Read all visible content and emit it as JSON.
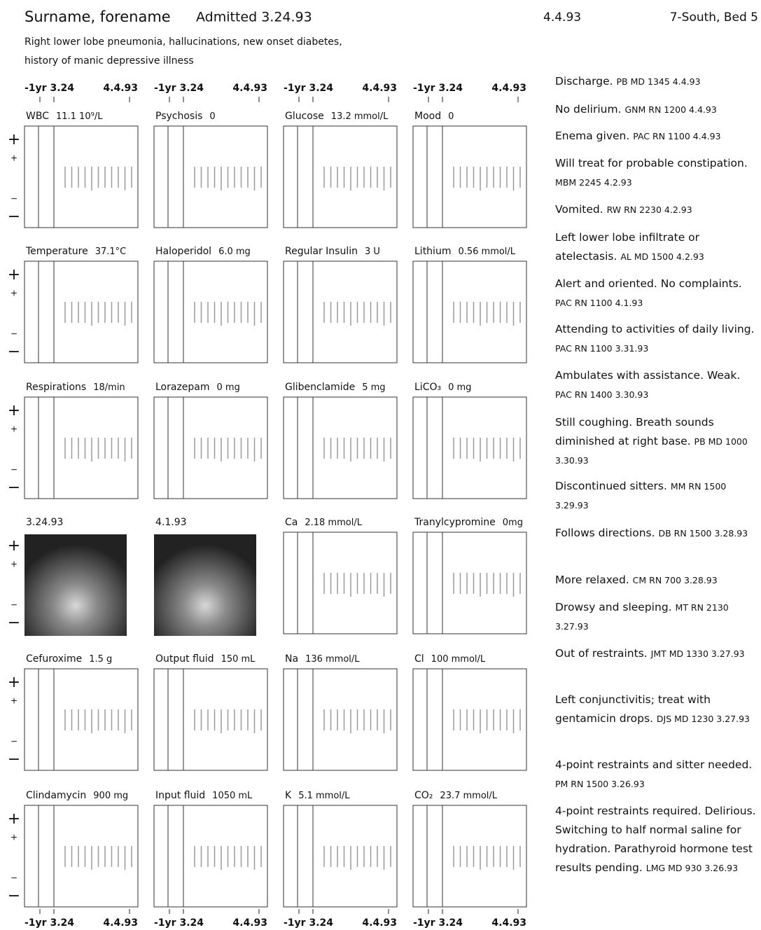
{
  "header": {
    "patient": "Surname, forename",
    "admitted": "Admitted 3.24.93",
    "date": "4.4.93",
    "location": "7-South, Bed 5",
    "diagnosis": [
      "Right lower lobe pneumonia, hallucinations, new onset diabetes,",
      "history of manic depressive illness"
    ]
  },
  "axis": {
    "left": "-1yr 3.24",
    "right": "4.4.93"
  },
  "scale": {
    "high": "+",
    "low": "−"
  },
  "panels": [
    [
      {
        "name": "WBC",
        "reading": "11.1  10⁹/L"
      },
      {
        "name": "Psychosis",
        "reading": "0"
      },
      {
        "name": "Glucose",
        "reading": "13.2 mmol/L"
      },
      {
        "name": "Mood",
        "reading": "0"
      }
    ],
    [
      {
        "name": "Temperature",
        "reading": "37.1°C"
      },
      {
        "name": "Haloperidol",
        "reading": "6.0 mg"
      },
      {
        "name": "Regular Insulin",
        "reading": "3 U"
      },
      {
        "name": "Lithium",
        "reading": "0.56 mmol/L"
      }
    ],
    [
      {
        "name": "Respirations",
        "reading": "18/min"
      },
      {
        "name": "Lorazepam",
        "reading": "0 mg"
      },
      {
        "name": "Glibenclamide",
        "reading": "5 mg"
      },
      {
        "name": "LiCO₃",
        "reading": "0 mg"
      }
    ],
    [
      {
        "caption": "3.24.93"
      },
      {
        "caption": "4.1.93"
      },
      {
        "name": "Ca",
        "reading": "2.18  mmol/L"
      },
      {
        "name": "Tranylcypromine",
        "reading": "0mg"
      }
    ],
    [
      {
        "name": "Cefuroxime",
        "reading": "1.5 g"
      },
      {
        "name": "Output fluid",
        "reading": "150 mL"
      },
      {
        "name": "Na",
        "reading": "136  mmol/L"
      },
      {
        "name": "Cl",
        "reading": "100  mmol/L"
      }
    ],
    [
      {
        "name": "Clindamycin",
        "reading": "900 mg"
      },
      {
        "name": "Input fluid",
        "reading": "1050 mL"
      },
      {
        "name": "K",
        "reading": "5.1  mmol/L"
      },
      {
        "name": "CO₂",
        "reading": "23.7 mmol/L"
      }
    ]
  ],
  "notes": [
    {
      "text": "Discharge.",
      "by": "PB MD 1345 4.4.93"
    },
    {
      "text": "No delirium.",
      "by": "GNM RN 1200 4.4.93"
    },
    {
      "text": "Enema given.",
      "by": "PAC RN 1100 4.4.93"
    },
    {
      "text": "Will treat for probable constipation.",
      "by": "MBM 2245 4.2.93"
    },
    {
      "text": "Vomited.",
      "by": "RW RN 2230 4.2.93"
    },
    {
      "text": "Left lower lobe infiltrate or atelectasis.",
      "by": "AL MD 1500 4.2.93"
    },
    {
      "text": "Alert and oriented. No complaints.",
      "by": "PAC RN 1100 4.1.93"
    },
    {
      "text": "Attending to activities of daily living.",
      "by": "PAC RN 1100 3.31.93"
    },
    {
      "text": "Ambulates with assistance. Weak.",
      "by": "PAC RN 1400 3.30.93"
    },
    {
      "text": "Still coughing. Breath sounds diminished at right base.",
      "by": "PB MD 1000 3.30.93"
    },
    {
      "text": "Discontinued sitters.",
      "by": "MM RN 1500 3.29.93"
    },
    {
      "text": "Follows directions.",
      "by": "DB RN 1500 3.28.93"
    },
    {
      "text": "More relaxed.",
      "by": "CM RN 700 3.28.93"
    },
    {
      "text": "Drowsy and sleeping.",
      "by": "MT RN 2130 3.27.93"
    },
    {
      "text": "Out of restraints.",
      "by": "JMT MD 1330 3.27.93"
    },
    {
      "text": "Left conjunctivitis; treat with gentamicin drops.",
      "by": "DJS MD 1230 3.27.93"
    },
    {
      "text": "4-point restraints and sitter needed.",
      "by": "PM RN 1500 3.26.93"
    },
    {
      "text": "4-point restraints required. Delirious. Switching to half normal saline for hydration. Parathyroid hormone test results pending.",
      "by": "LMG MD 930 3.26.93"
    }
  ]
}
